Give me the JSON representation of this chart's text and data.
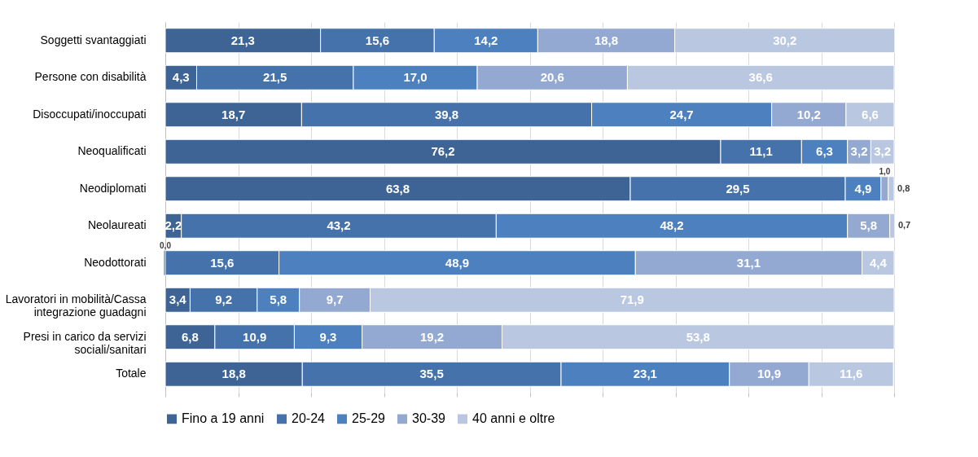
{
  "chart_data": {
    "type": "bar",
    "orientation": "horizontal",
    "stacked": true,
    "categories": [
      "Soggetti svantaggiati",
      "Persone con disabilità",
      "Disoccupati/inoccupati",
      "Neoqualificati",
      "Neodiplomati",
      "Neolaureati",
      "Neodottorati",
      "Lavoratori in mobilità/Cassa integrazione guadagni",
      "Presi in carico da servizi sociali/sanitari",
      "Totale"
    ],
    "series": [
      {
        "name": "Fino a 19 anni",
        "color": "#3d6495",
        "values": [
          21.3,
          4.3,
          18.7,
          76.2,
          63.8,
          2.2,
          0.0,
          3.4,
          6.8,
          18.8
        ],
        "value_labels": [
          "21,3",
          "4,3",
          "18,7",
          "76,2",
          "63,8",
          "2,2",
          "0,0",
          "3,4",
          "6,8",
          "18,8"
        ]
      },
      {
        "name": "20-24",
        "color": "#4572aa",
        "values": [
          15.6,
          21.5,
          39.8,
          11.1,
          29.5,
          43.2,
          15.6,
          9.2,
          10.9,
          35.5
        ],
        "value_labels": [
          "15,6",
          "21,5",
          "39,8",
          "11,1",
          "29,5",
          "43,2",
          "15,6",
          "9,2",
          "10,9",
          "35,5"
        ]
      },
      {
        "name": "25-29",
        "color": "#4d80be",
        "values": [
          14.2,
          17.0,
          24.7,
          6.3,
          4.9,
          48.2,
          48.9,
          5.8,
          9.3,
          23.1
        ],
        "value_labels": [
          "14,2",
          "17,0",
          "24,7",
          "6,3",
          "4,9",
          "48,2",
          "48,9",
          "5,8",
          "9,3",
          "23,1"
        ]
      },
      {
        "name": "30-39",
        "color": "#93a9d2",
        "values": [
          18.8,
          20.6,
          10.2,
          3.2,
          1.0,
          5.8,
          31.1,
          9.7,
          19.2,
          10.9
        ],
        "value_labels": [
          "18,8",
          "20,6",
          "10,2",
          "3,2",
          "1,0",
          "5,8",
          "31,1",
          "9,7",
          "19,2",
          "10,9"
        ]
      },
      {
        "name": "40 anni e oltre",
        "color": "#b9c7e1",
        "values": [
          30.2,
          36.6,
          6.6,
          3.2,
          0.8,
          0.7,
          4.4,
          71.9,
          53.8,
          11.6
        ],
        "value_labels": [
          "30,2",
          "36,6",
          "6,6",
          "3,2",
          "0,8",
          "0,7",
          "4,4",
          "71,9",
          "53,8",
          "11,6"
        ]
      }
    ],
    "xlim": [
      0,
      100
    ],
    "xticks": [
      {
        "value": 0,
        "label": null
      },
      {
        "value": 10,
        "label": null
      },
      {
        "value": 20,
        "label": null
      },
      {
        "value": 30,
        "label": null
      },
      {
        "value": 40,
        "label": null
      },
      {
        "value": 50,
        "label": null
      },
      {
        "value": 60,
        "label": null
      },
      {
        "value": 70,
        "label": null
      },
      {
        "value": 80,
        "label": null
      },
      {
        "value": 90,
        "label": null
      },
      {
        "value": 100,
        "label": null
      }
    ],
    "tick_labels": "y",
    "grid": "x",
    "legend": "bottom"
  }
}
